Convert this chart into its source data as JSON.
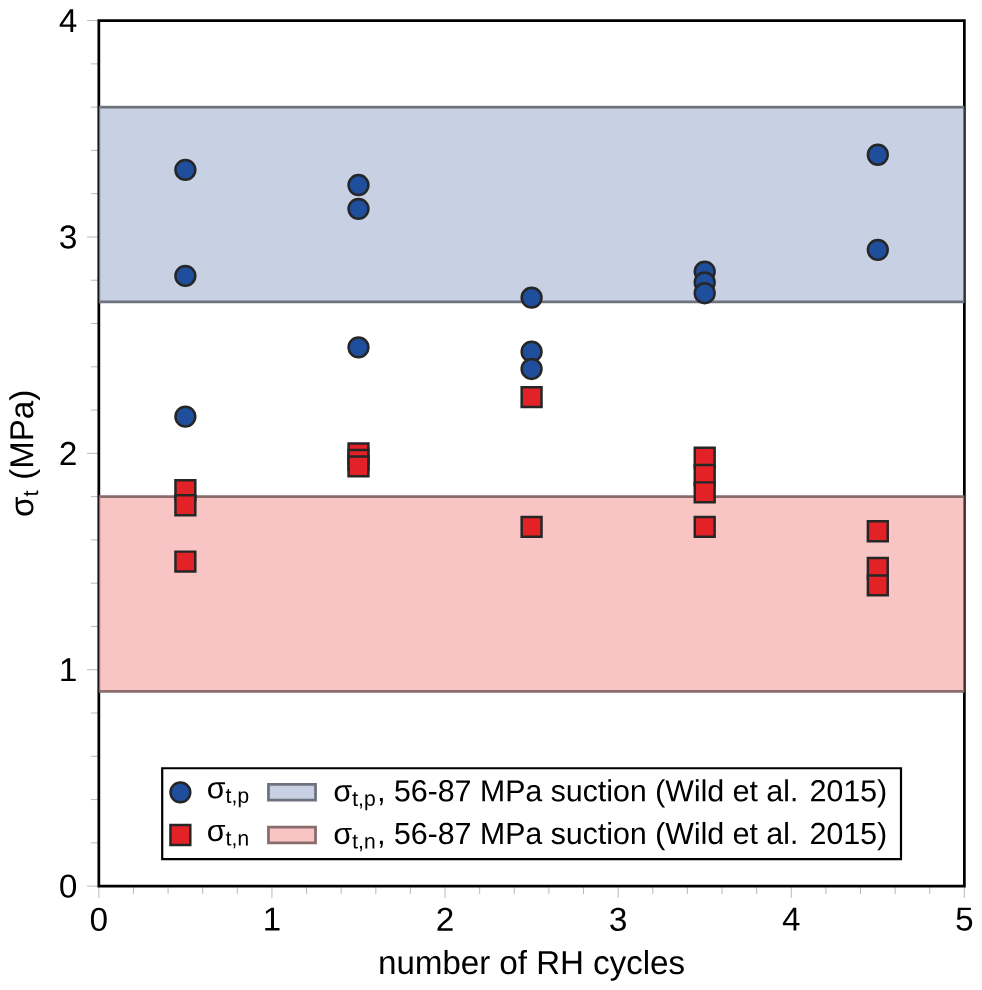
{
  "chart_data": {
    "type": "scatter",
    "xlabel": "number of RH cycles",
    "ylabel": "σ$_{t}$ (MPa)",
    "xlim": [
      0,
      5
    ],
    "ylim": [
      0,
      4
    ],
    "xticks": [
      0,
      1,
      2,
      3,
      4,
      5
    ],
    "yticks": [
      0,
      1,
      2,
      3,
      4
    ],
    "legend": "bottom",
    "grid": false,
    "series": [
      {
        "name": "σ$_{t,p}$",
        "color": "#1f4e9c",
        "marker": "circle",
        "x": [
          0.5,
          0.5,
          0.5,
          1.5,
          1.5,
          1.5,
          2.5,
          2.5,
          2.5,
          3.5,
          3.5,
          3.5,
          4.5,
          4.5
        ],
        "values": [
          3.31,
          2.82,
          2.17,
          3.24,
          3.13,
          2.49,
          2.72,
          2.47,
          2.39,
          2.84,
          2.79,
          2.74,
          3.38,
          2.94
        ]
      },
      {
        "name": "σ$_{t,n}$",
        "color": "#e32228",
        "marker": "square",
        "x": [
          0.5,
          0.5,
          0.5,
          1.5,
          1.5,
          1.5,
          2.5,
          2.5,
          3.5,
          3.5,
          3.5,
          3.5,
          4.5,
          4.5,
          4.5
        ],
        "values": [
          1.83,
          1.76,
          1.5,
          2.0,
          1.97,
          1.94,
          2.26,
          1.66,
          1.98,
          1.9,
          1.82,
          1.66,
          1.64,
          1.47,
          1.39
        ]
      }
    ],
    "bands": [
      {
        "axis": "y",
        "from": 2.7,
        "to": 3.6,
        "label": "σ$_{t,p}$, 56-87 MPa suction (Wild et al. 2015)",
        "color": "#c8d0e4"
      },
      {
        "axis": "y",
        "from": 0.9,
        "to": 1.8,
        "label": "σ$_{t,n}$, 56-87 MPa suction (Wild et al. 2015)",
        "color": "#f9c4c4"
      }
    ]
  }
}
